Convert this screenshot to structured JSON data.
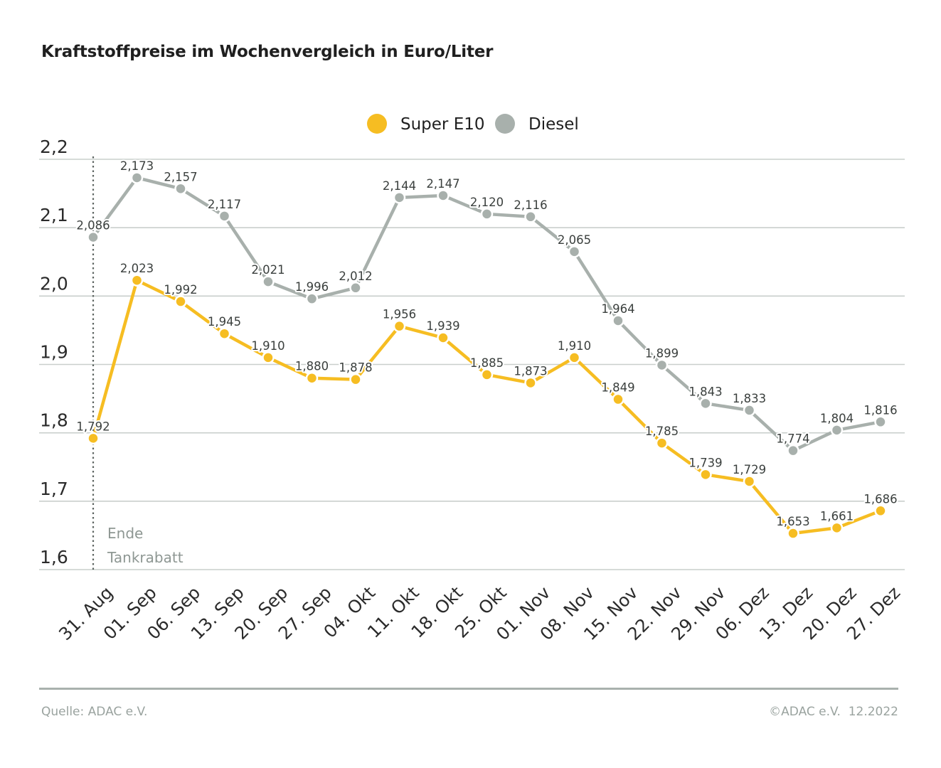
{
  "header": {
    "title": "Kraftstoffpreise im Wochenvergleich in Euro/Liter"
  },
  "footer": {
    "source": "Quelle: ADAC e.V.",
    "copyright": "©ADAC e.V.  12.2022"
  },
  "annotation": {
    "line1": "Ende",
    "line2": "Tankrabatt",
    "category": "31. Aug"
  },
  "chart_data": {
    "type": "line",
    "title": "Kraftstoffpreise im Wochenvergleich in Euro/Liter",
    "xlabel": "",
    "ylabel": "",
    "ylim": [
      1.6,
      2.2
    ],
    "yticks": [
      1.6,
      1.7,
      1.8,
      1.9,
      2.0,
      2.1,
      2.2
    ],
    "ytick_labels": [
      "1,6",
      "1,7",
      "1,8",
      "1,9",
      "2,0",
      "2,1",
      "2,2"
    ],
    "grid": true,
    "legend_position": "top-center",
    "categories": [
      "31. Aug",
      "01. Sep",
      "06. Sep",
      "13. Sep",
      "20. Sep",
      "27. Sep",
      "04. Okt",
      "11. Okt",
      "18. Okt",
      "25. Okt",
      "01. Nov",
      "08. Nov",
      "15. Nov",
      "22. Nov",
      "29. Nov",
      "06. Dez",
      "13. Dez",
      "20. Dez",
      "27. Dez"
    ],
    "series": [
      {
        "name": "Super E10",
        "color": "#f6bd22",
        "values": [
          1.792,
          2.023,
          1.992,
          1.945,
          1.91,
          1.88,
          1.878,
          1.956,
          1.939,
          1.885,
          1.873,
          1.91,
          1.849,
          1.785,
          1.739,
          1.729,
          1.653,
          1.661,
          1.686
        ],
        "labels": [
          "1,792",
          "2,023",
          "1,992",
          "1,945",
          "1,910",
          "1,880",
          "1,878",
          "1,956",
          "1,939",
          "1,885",
          "1,873",
          "1,910",
          "1,849",
          "1,785",
          "1,739",
          "1,729",
          "1,653",
          "1,661",
          "1,686"
        ]
      },
      {
        "name": "Diesel",
        "color": "#a8b0ac",
        "values": [
          2.086,
          2.173,
          2.157,
          2.117,
          2.021,
          1.996,
          2.012,
          2.144,
          2.147,
          2.12,
          2.116,
          2.065,
          1.964,
          1.899,
          1.843,
          1.833,
          1.774,
          1.804,
          1.816
        ],
        "labels": [
          "2,086",
          "2,173",
          "2,157",
          "2,117",
          "2,021",
          "1,996",
          "2,012",
          "2,144",
          "2,147",
          "2,120",
          "2,116",
          "2,065",
          "1,964",
          "1,899",
          "1,843",
          "1,833",
          "1,774",
          "1,804",
          "1,816"
        ]
      }
    ]
  }
}
